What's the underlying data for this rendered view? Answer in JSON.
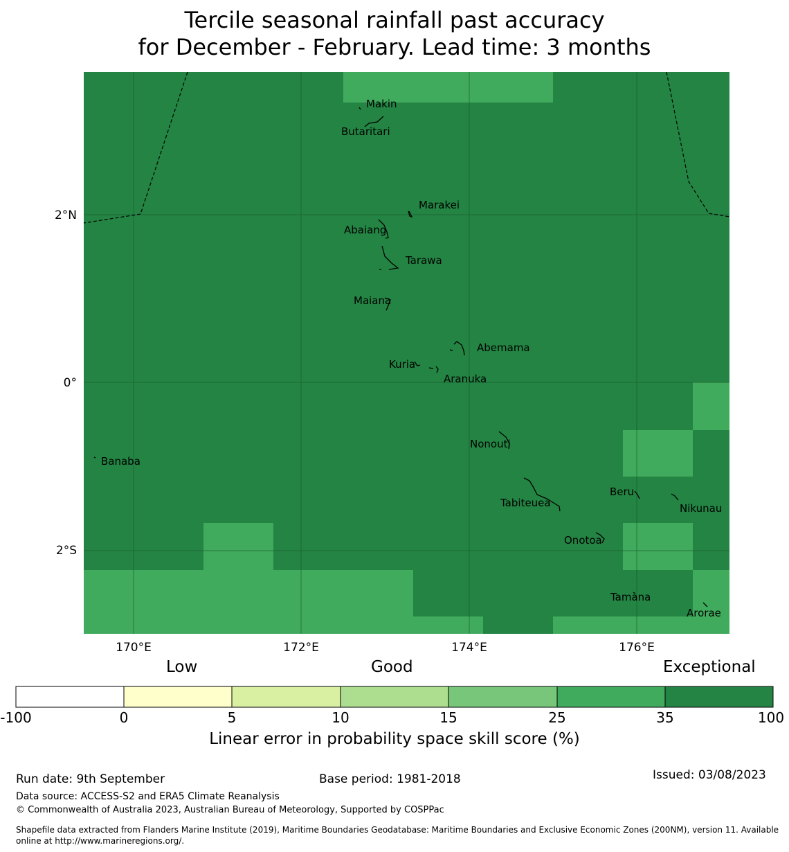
{
  "title": {
    "line1": "Tercile seasonal rainfall past accuracy",
    "line2": "for December - February. Lead time: 3 months"
  },
  "map": {
    "lat_ticks": [
      "2°N",
      "0°",
      "2°S"
    ],
    "lon_ticks": [
      "170°E",
      "172°E",
      "174°E",
      "176°E"
    ],
    "place_labels": [
      "Makin",
      "Butaritari",
      "Marakei",
      "Abaiang",
      "Tarawa",
      "Maiana",
      "Abemama",
      "Kuria",
      "Aranuka",
      "Banaba",
      "Nonouti",
      "Beru",
      "Nikunau",
      "Tabiteuea",
      "Onotoa",
      "Tamana",
      "Arorae"
    ]
  },
  "colorbar": {
    "categories": [
      "Low",
      "Good",
      "Exceptional"
    ],
    "ticks": [
      "-100",
      "0",
      "5",
      "10",
      "15",
      "25",
      "35",
      "100"
    ],
    "colors": [
      "#ffffff",
      "#ffffcc",
      "#d9f0a3",
      "#addd8e",
      "#78c679",
      "#41ab5d",
      "#238443"
    ],
    "label": "Linear error in probability space skill score (%)"
  },
  "footer": {
    "run_date": "Run date: 9th September",
    "base_period": "Base period: 1981-2018",
    "issued": "Issued: 03/08/2023",
    "data_source": "Data source: ACCESS-S2 and ERA5 Climate Reanalysis",
    "copyright": "© Commonwealth of Australia 2023, Australian Bureau of Meteorology, Supported by COSPPac",
    "shapefile_line1": "Shapefile data extracted from Flanders Marine Institute (2019), Maritime Boundaries Geodatabase: Maritime Boundaries and Exclusive Economic Zones (200NM), version 11. Available",
    "shapefile_line2": "online at http://www.marineregions.org/."
  }
}
